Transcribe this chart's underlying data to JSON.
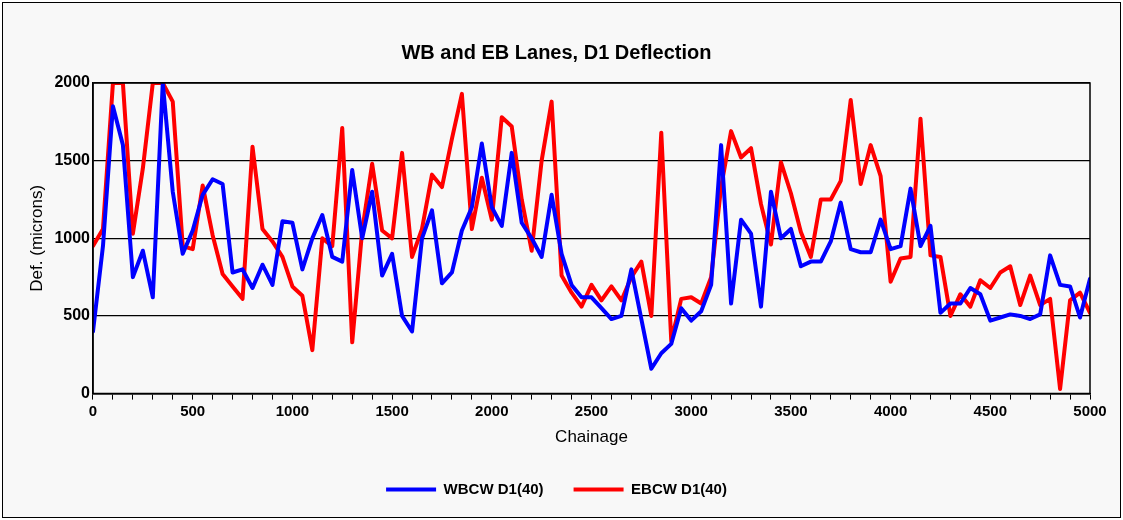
{
  "chart_data": {
    "type": "line",
    "title": "WB and EB Lanes, D1 Deflection",
    "xlabel": "Chainage",
    "ylabel": "Def. (microns)",
    "x": [
      0,
      50,
      100,
      150,
      200,
      250,
      300,
      350,
      400,
      450,
      500,
      550,
      600,
      650,
      700,
      750,
      800,
      850,
      900,
      950,
      1000,
      1050,
      1100,
      1150,
      1200,
      1250,
      1300,
      1350,
      1400,
      1450,
      1500,
      1550,
      1600,
      1650,
      1700,
      1750,
      1800,
      1850,
      1900,
      1950,
      2000,
      2050,
      2100,
      2150,
      2200,
      2250,
      2300,
      2350,
      2400,
      2450,
      2500,
      2550,
      2600,
      2650,
      2700,
      2750,
      2800,
      2850,
      2900,
      2950,
      3000,
      3050,
      3100,
      3150,
      3200,
      3250,
      3300,
      3350,
      3400,
      3450,
      3500,
      3550,
      3600,
      3650,
      3700,
      3750,
      3800,
      3850,
      3900,
      3950,
      4000,
      4050,
      4100,
      4150,
      4200,
      4250,
      4300,
      4350,
      4400,
      4450,
      4500,
      4550,
      4600,
      4650,
      4700,
      4750,
      4800,
      4850,
      4900,
      4950,
      5000
    ],
    "series": [
      {
        "name": "WBCW D1(40)",
        "color": "#0000ff",
        "values": [
          400,
          950,
          1850,
          1600,
          750,
          920,
          620,
          2000,
          1300,
          900,
          1050,
          1280,
          1380,
          1350,
          780,
          800,
          680,
          830,
          700,
          1110,
          1100,
          800,
          1000,
          1150,
          880,
          850,
          1440,
          1000,
          1300,
          760,
          900,
          500,
          400,
          1000,
          1180,
          710,
          780,
          1050,
          1200,
          1610,
          1200,
          1080,
          1550,
          1100,
          1000,
          880,
          1280,
          900,
          700,
          620,
          620,
          550,
          480,
          500,
          800,
          480,
          160,
          260,
          320,
          550,
          470,
          530,
          700,
          1600,
          580,
          1120,
          1030,
          560,
          1300,
          1000,
          1060,
          820,
          850,
          850,
          980,
          1230,
          930,
          910,
          910,
          1120,
          930,
          950,
          1320,
          950,
          1080,
          520,
          580,
          580,
          680,
          640,
          470,
          490,
          510,
          500,
          480,
          510,
          890,
          700,
          690,
          490,
          740
        ]
      },
      {
        "name": "EBCW D1(40)",
        "color": "#ff0000",
        "values": [
          950,
          1060,
          2000,
          2000,
          1030,
          1450,
          2000,
          2000,
          1880,
          950,
          930,
          1340,
          1020,
          770,
          690,
          610,
          1590,
          1060,
          980,
          880,
          690,
          630,
          280,
          1000,
          950,
          1710,
          330,
          1050,
          1480,
          1050,
          1000,
          1550,
          880,
          1060,
          1410,
          1330,
          1640,
          1930,
          1060,
          1390,
          1120,
          1780,
          1720,
          1250,
          920,
          1500,
          1880,
          760,
          650,
          560,
          700,
          600,
          690,
          600,
          750,
          850,
          500,
          1680,
          340,
          610,
          620,
          580,
          750,
          1330,
          1690,
          1520,
          1580,
          1220,
          960,
          1490,
          1290,
          1040,
          880,
          1250,
          1250,
          1370,
          1890,
          1350,
          1600,
          1400,
          720,
          870,
          880,
          1770,
          890,
          880,
          500,
          640,
          560,
          730,
          680,
          780,
          820,
          570,
          760,
          570,
          610,
          30,
          600,
          650,
          520
        ]
      }
    ],
    "xlim": [
      0,
      5000
    ],
    "xticks": [
      0,
      {
        "value": 100,
        "label": null
      },
      {
        "value": 200,
        "label": null
      },
      {
        "value": 300,
        "label": null
      },
      {
        "value": 400,
        "label": null
      },
      500,
      {
        "value": 600,
        "label": null
      },
      {
        "value": 700,
        "label": null
      },
      {
        "value": 800,
        "label": null
      },
      {
        "value": 900,
        "label": null
      },
      1000,
      {
        "value": 1100,
        "label": null
      },
      {
        "value": 1200,
        "label": null
      },
      {
        "value": 1300,
        "label": null
      },
      {
        "value": 1400,
        "label": null
      },
      1500,
      {
        "value": 1600,
        "label": null
      },
      {
        "value": 1700,
        "label": null
      },
      {
        "value": 1800,
        "label": null
      },
      {
        "value": 1900,
        "label": null
      },
      2000,
      {
        "value": 2100,
        "label": null
      },
      {
        "value": 2200,
        "label": null
      },
      {
        "value": 2300,
        "label": null
      },
      {
        "value": 2400,
        "label": null
      },
      2500,
      {
        "value": 2600,
        "label": null
      },
      {
        "value": 2700,
        "label": null
      },
      {
        "value": 2800,
        "label": null
      },
      {
        "value": 2900,
        "label": null
      },
      3000,
      {
        "value": 3100,
        "label": null
      },
      {
        "value": 3200,
        "label": null
      },
      {
        "value": 3300,
        "label": null
      },
      {
        "value": 3400,
        "label": null
      },
      3500,
      {
        "value": 3600,
        "label": null
      },
      {
        "value": 3700,
        "label": null
      },
      {
        "value": 3800,
        "label": null
      },
      {
        "value": 3900,
        "label": null
      },
      4000,
      {
        "value": 4100,
        "label": null
      },
      {
        "value": 4200,
        "label": null
      },
      {
        "value": 4300,
        "label": null
      },
      {
        "value": 4400,
        "label": null
      },
      4500,
      {
        "value": 4600,
        "label": null
      },
      {
        "value": 4700,
        "label": null
      },
      {
        "value": 4800,
        "label": null
      },
      {
        "value": 4900,
        "label": null
      },
      5000
    ],
    "ylim": [
      0,
      2000
    ],
    "yticks": [
      0,
      500,
      1000,
      1500,
      2000
    ],
    "grid": "y",
    "legend": "bottom",
    "marker": "none",
    "line_style": "solid"
  }
}
